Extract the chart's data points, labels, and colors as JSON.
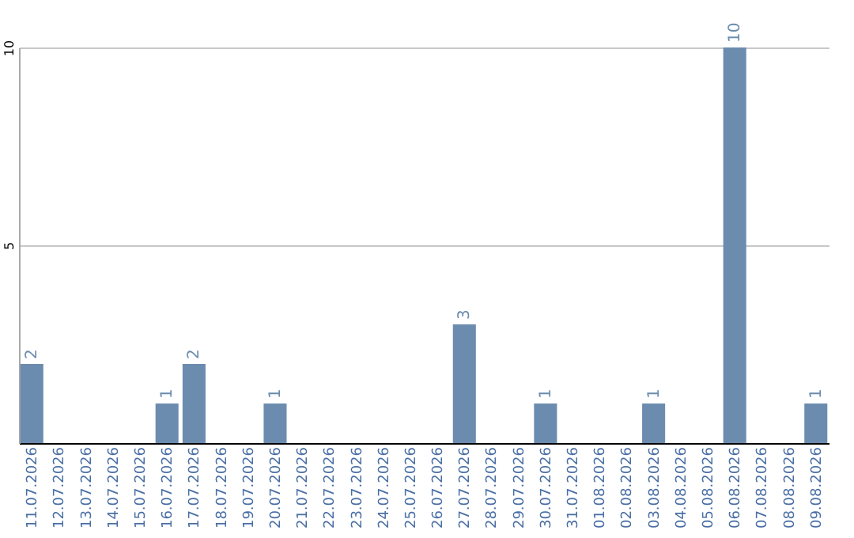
{
  "chart_data": {
    "type": "bar",
    "categories": [
      "11.07.2026",
      "12.07.2026",
      "13.07.2026",
      "14.07.2026",
      "15.07.2026",
      "16.07.2026",
      "17.07.2026",
      "18.07.2026",
      "19.07.2026",
      "20.07.2026",
      "21.07.2026",
      "22.07.2026",
      "23.07.2026",
      "24.07.2026",
      "25.07.2026",
      "26.07.2026",
      "27.07.2026",
      "28.07.2026",
      "29.07.2026",
      "30.07.2026",
      "31.07.2026",
      "01.08.2026",
      "02.08.2026",
      "03.08.2026",
      "04.08.2026",
      "05.08.2026",
      "06.08.2026",
      "07.08.2026",
      "08.08.2026",
      "09.08.2026"
    ],
    "values": [
      2,
      0,
      0,
      0,
      0,
      1,
      2,
      0,
      0,
      1,
      0,
      0,
      0,
      0,
      0,
      0,
      3,
      0,
      0,
      1,
      0,
      0,
      0,
      1,
      0,
      0,
      10,
      0,
      0,
      1
    ],
    "value_labels": [
      "2",
      null,
      null,
      null,
      null,
      "1",
      "2",
      null,
      null,
      "1",
      null,
      null,
      null,
      null,
      null,
      null,
      "3",
      null,
      null,
      "1",
      null,
      null,
      null,
      "1",
      null,
      null,
      "10",
      null,
      null,
      "1"
    ],
    "color": "#6b8cae",
    "ylim": [
      0,
      10
    ],
    "yticks": [
      {
        "value": 0,
        "label": null
      },
      5,
      10
    ],
    "grid": "y"
  }
}
